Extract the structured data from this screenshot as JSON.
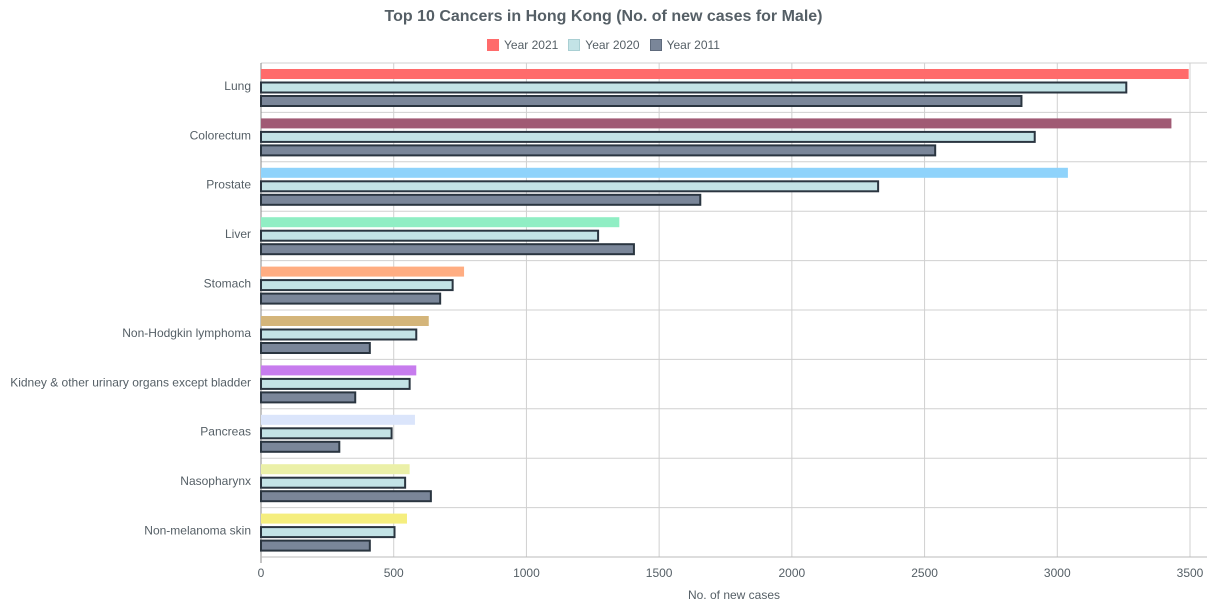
{
  "chart_data": {
    "type": "bar",
    "orientation": "horizontal",
    "title": "Top 10 Cancers in Hong Kong (No. of new cases for Male)",
    "xlabel": "No. of new cases",
    "ylabel": "",
    "xlim": [
      0,
      3500
    ],
    "xticks": [
      0,
      500,
      1000,
      1500,
      2000,
      2500,
      3000,
      3500
    ],
    "grid": true,
    "legend_position": "top",
    "categories": [
      "Lung",
      "Colorectum",
      "Prostate",
      "Liver",
      "Stomach",
      "Non-Hodgkin lymphoma",
      "Kidney & other urinary organs except bladder",
      "Pancreas",
      "Nasopharynx",
      "Non-melanoma skin"
    ],
    "series": [
      {
        "name": "Year 2021",
        "values": [
          3495,
          3430,
          3040,
          1350,
          765,
          632,
          585,
          580,
          560,
          550
        ],
        "colors": [
          "#ff6b6b",
          "#a05a74",
          "#8fd3fb",
          "#90eec4",
          "#ffad82",
          "#d4b57a",
          "#c77cee",
          "#dbe5fb",
          "#ebf0a8",
          "#f5ee7e"
        ],
        "border": "none"
      },
      {
        "name": "Year 2020",
        "values": [
          3260,
          2915,
          2325,
          1270,
          722,
          585,
          560,
          492,
          543,
          503
        ],
        "color": "#c3e3e6",
        "border": "#2a3540"
      },
      {
        "name": "Year 2011",
        "values": [
          2865,
          2540,
          1655,
          1405,
          675,
          410,
          355,
          295,
          640,
          410
        ],
        "color": "#7a8699",
        "border": "#2a3540"
      }
    ],
    "legend_swatches": [
      "#ff6b6b",
      "#c3e3e6",
      "#7a8699"
    ]
  }
}
